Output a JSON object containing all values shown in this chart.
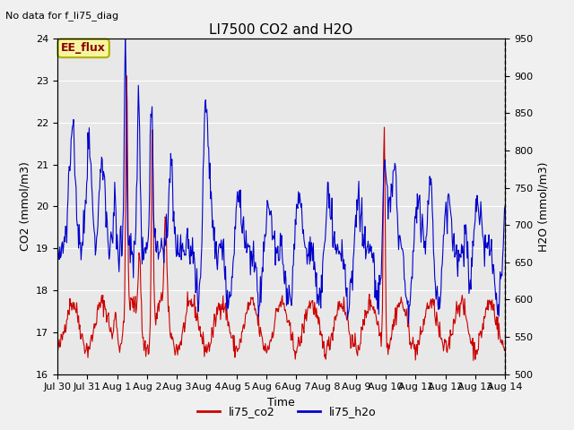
{
  "title": "LI7500 CO2 and H2O",
  "top_left_text": "No data for f_li75_diag",
  "annotation_text": "EE_flux",
  "xlabel": "Time",
  "ylabel_left": "CO2 (mmol/m3)",
  "ylabel_right": "H2O (mmol/m3)",
  "ylim_left": [
    16.0,
    24.0
  ],
  "ylim_right": [
    500,
    950
  ],
  "yticks_left": [
    16.0,
    17.0,
    18.0,
    19.0,
    20.0,
    21.0,
    22.0,
    23.0,
    24.0
  ],
  "yticks_right": [
    500,
    550,
    600,
    650,
    700,
    750,
    800,
    850,
    900,
    950
  ],
  "xtick_labels": [
    "Jul 30",
    "Jul 31",
    "Aug 1",
    "Aug 2",
    "Aug 3",
    "Aug 4",
    "Aug 5",
    "Aug 6",
    "Aug 7",
    "Aug 8",
    "Aug 9",
    "Aug 10",
    "Aug 11",
    "Aug 12",
    "Aug 13",
    "Aug 14"
  ],
  "fig_bg_color": "#f0f0f0",
  "plot_bg_color": "#e8e8e8",
  "co2_color": "#cc0000",
  "h2o_color": "#0000cc",
  "legend_co2": "li75_co2",
  "legend_h2o": "li75_h2o",
  "n_days": 15,
  "n_points_per_day": 48,
  "ee_flux_facecolor": "#f5f5a0",
  "ee_flux_edgecolor": "#b0b000",
  "ee_flux_textcolor": "#8b0000",
  "grid_color": "#ffffff",
  "right_spine_dotted": true
}
